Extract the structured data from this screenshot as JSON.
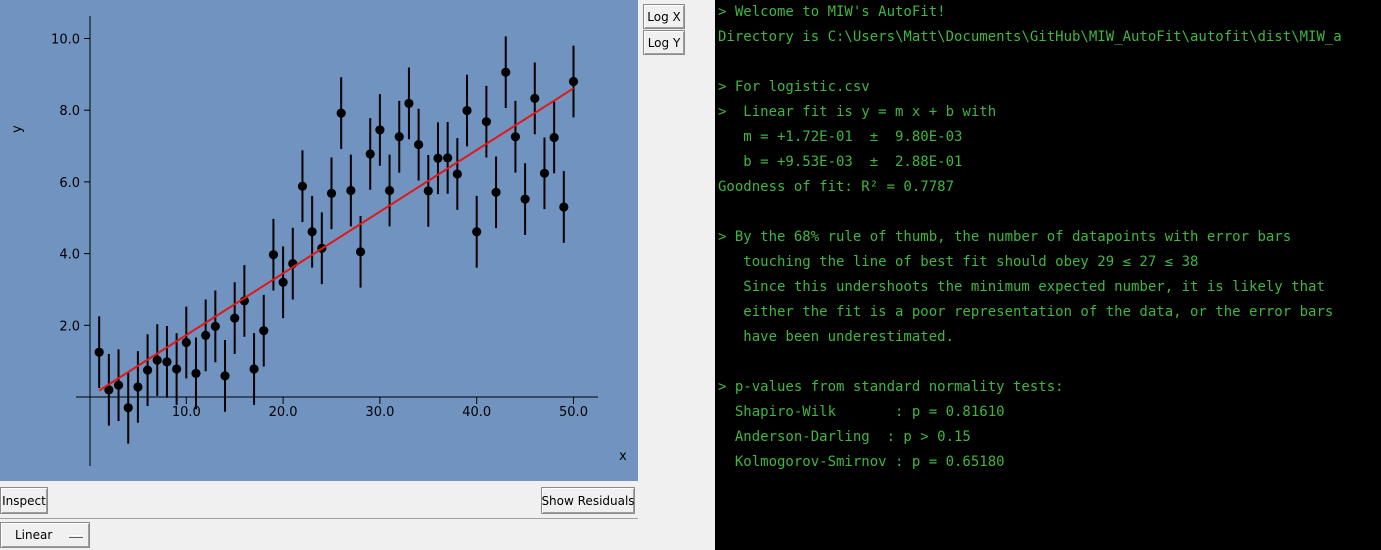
{
  "plot": {
    "xlabel": "x",
    "ylabel": "y",
    "x_ticks": [
      "10.0",
      "20.0",
      "30.0",
      "40.0",
      "50.0"
    ],
    "y_ticks": [
      "2.0",
      "4.0",
      "6.0",
      "8.0",
      "10.0"
    ]
  },
  "chart_data": {
    "type": "scatter",
    "title": "",
    "xlabel": "x",
    "ylabel": "y",
    "xlim": [
      -0.6,
      52.5
    ],
    "ylim": [
      -1.9,
      10.7
    ],
    "grid": false,
    "colors": {
      "background": "#7093c0",
      "points": "#000000",
      "fit_line": "#e01818"
    },
    "series": [
      {
        "type": "scatter",
        "x": [
          1,
          2,
          3,
          4,
          5,
          6,
          7,
          8,
          9,
          10,
          11,
          12,
          13,
          14,
          15,
          16,
          17,
          18,
          19,
          20,
          21,
          22,
          23,
          24,
          25,
          26,
          27,
          28,
          29,
          30,
          31,
          32,
          33,
          34,
          35,
          36,
          37,
          38,
          39,
          40,
          41,
          42,
          43,
          44,
          45,
          46,
          47,
          48,
          49,
          50
        ],
        "y": [
          1.25,
          0.2,
          0.33,
          -0.3,
          0.28,
          0.75,
          1.03,
          0.98,
          0.78,
          1.52,
          0.66,
          1.72,
          1.97,
          0.59,
          2.2,
          2.68,
          0.78,
          1.85,
          3.97,
          3.2,
          3.72,
          5.88,
          4.61,
          4.15,
          5.68,
          7.92,
          5.76,
          4.05,
          6.78,
          7.45,
          5.76,
          7.26,
          8.19,
          7.04,
          5.75,
          6.66,
          6.67,
          6.22,
          7.99,
          4.61,
          7.68,
          5.71,
          9.06,
          7.26,
          5.52,
          8.33,
          6.24,
          7.24,
          5.3,
          8.8
        ],
        "yerr": 1.0
      },
      {
        "type": "line",
        "x": [
          1,
          50
        ],
        "y": [
          0.18,
          8.61
        ]
      }
    ]
  },
  "buttons": {
    "log_x": "Log X",
    "log_y": "Log Y",
    "inspect": "Inspect",
    "show_residuals": "Show Residuals"
  },
  "fit_selector": {
    "selected": "Linear"
  },
  "console": {
    "lines": [
      "> Welcome to MIW's AutoFit!",
      "Directory is C:\\Users\\Matt\\Documents\\GitHub\\MIW_AutoFit\\autofit\\dist\\MIW_a",
      "",
      "> For logistic.csv",
      ">  Linear fit is y = m x + b with",
      "   m = +1.72E-01  ±  9.80E-03",
      "   b = +9.53E-03  ±  2.88E-01",
      "Goodness of fit: R² = 0.7787",
      "",
      "> By the 68% rule of thumb, the number of datapoints with error bars",
      "   touching the line of best fit should obey 29 ≤ 27 ≤ 38",
      "   Since this undershoots the minimum expected number, it is likely that",
      "   either the fit is a poor representation of the data, or the error bars",
      "   have been underestimated.",
      "",
      "> p-values from standard normality tests:",
      "  Shapiro-Wilk       : p = 0.81610",
      "  Anderson-Darling  : p > 0.15",
      "  Kolmogorov-Smirnov : p = 0.65180"
    ]
  }
}
